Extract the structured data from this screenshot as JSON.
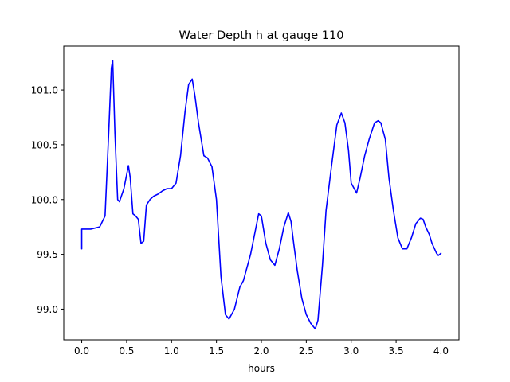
{
  "chart_data": {
    "type": "line",
    "title": "Water Depth h at gauge 110",
    "xlabel": "hours",
    "ylabel": "",
    "xlim": [
      -0.2,
      4.2
    ],
    "ylim": [
      98.72,
      101.4
    ],
    "xticks": [
      0.0,
      0.5,
      1.0,
      1.5,
      2.0,
      2.5,
      3.0,
      3.5,
      4.0
    ],
    "xtick_labels": [
      "0.0",
      "0.5",
      "1.0",
      "1.5",
      "2.0",
      "2.5",
      "3.0",
      "3.5",
      "4.0"
    ],
    "yticks": [
      99.0,
      99.5,
      100.0,
      100.5,
      101.0
    ],
    "ytick_labels": [
      "99.0",
      "99.5",
      "100.0",
      "100.5",
      "101.0"
    ],
    "grid": false,
    "series": [
      {
        "color": "#0000ff",
        "x": [
          0.0,
          0.0,
          0.1,
          0.2,
          0.26,
          0.3,
          0.33,
          0.345,
          0.37,
          0.4,
          0.42,
          0.47,
          0.52,
          0.54,
          0.57,
          0.6,
          0.63,
          0.66,
          0.69,
          0.72,
          0.76,
          0.8,
          0.85,
          0.9,
          0.95,
          1.0,
          1.05,
          1.1,
          1.15,
          1.19,
          1.23,
          1.26,
          1.3,
          1.36,
          1.4,
          1.45,
          1.5,
          1.55,
          1.6,
          1.64,
          1.7,
          1.76,
          1.8,
          1.88,
          1.97,
          2.0,
          2.05,
          2.1,
          2.15,
          2.2,
          2.25,
          2.3,
          2.33,
          2.36,
          2.4,
          2.45,
          2.5,
          2.55,
          2.6,
          2.63,
          2.68,
          2.72,
          2.78,
          2.84,
          2.89,
          2.93,
          2.97,
          3.0,
          3.06,
          3.1,
          3.15,
          3.2,
          3.26,
          3.3,
          3.33,
          3.38,
          3.42,
          3.47,
          3.52,
          3.57,
          3.62,
          3.67,
          3.72,
          3.77,
          3.8,
          3.83,
          3.87,
          3.9,
          3.95,
          3.97,
          4.0
        ],
        "y": [
          99.55,
          99.73,
          99.73,
          99.75,
          99.85,
          100.6,
          101.2,
          101.27,
          100.6,
          100.0,
          99.98,
          100.1,
          100.31,
          100.2,
          99.87,
          99.85,
          99.82,
          99.6,
          99.62,
          99.95,
          100.0,
          100.03,
          100.05,
          100.08,
          100.1,
          100.1,
          100.15,
          100.4,
          100.8,
          101.05,
          101.1,
          100.95,
          100.7,
          100.4,
          100.38,
          100.3,
          100.0,
          99.3,
          98.95,
          98.91,
          99.0,
          99.2,
          99.26,
          99.5,
          99.87,
          99.85,
          99.6,
          99.45,
          99.4,
          99.55,
          99.75,
          99.88,
          99.8,
          99.6,
          99.35,
          99.1,
          98.95,
          98.87,
          98.82,
          98.9,
          99.4,
          99.9,
          100.3,
          100.68,
          100.79,
          100.7,
          100.45,
          100.15,
          100.06,
          100.2,
          100.4,
          100.55,
          100.7,
          100.72,
          100.7,
          100.55,
          100.2,
          99.9,
          99.65,
          99.55,
          99.55,
          99.65,
          99.78,
          99.83,
          99.82,
          99.75,
          99.68,
          99.6,
          99.51,
          99.49,
          99.51
        ]
      }
    ]
  }
}
